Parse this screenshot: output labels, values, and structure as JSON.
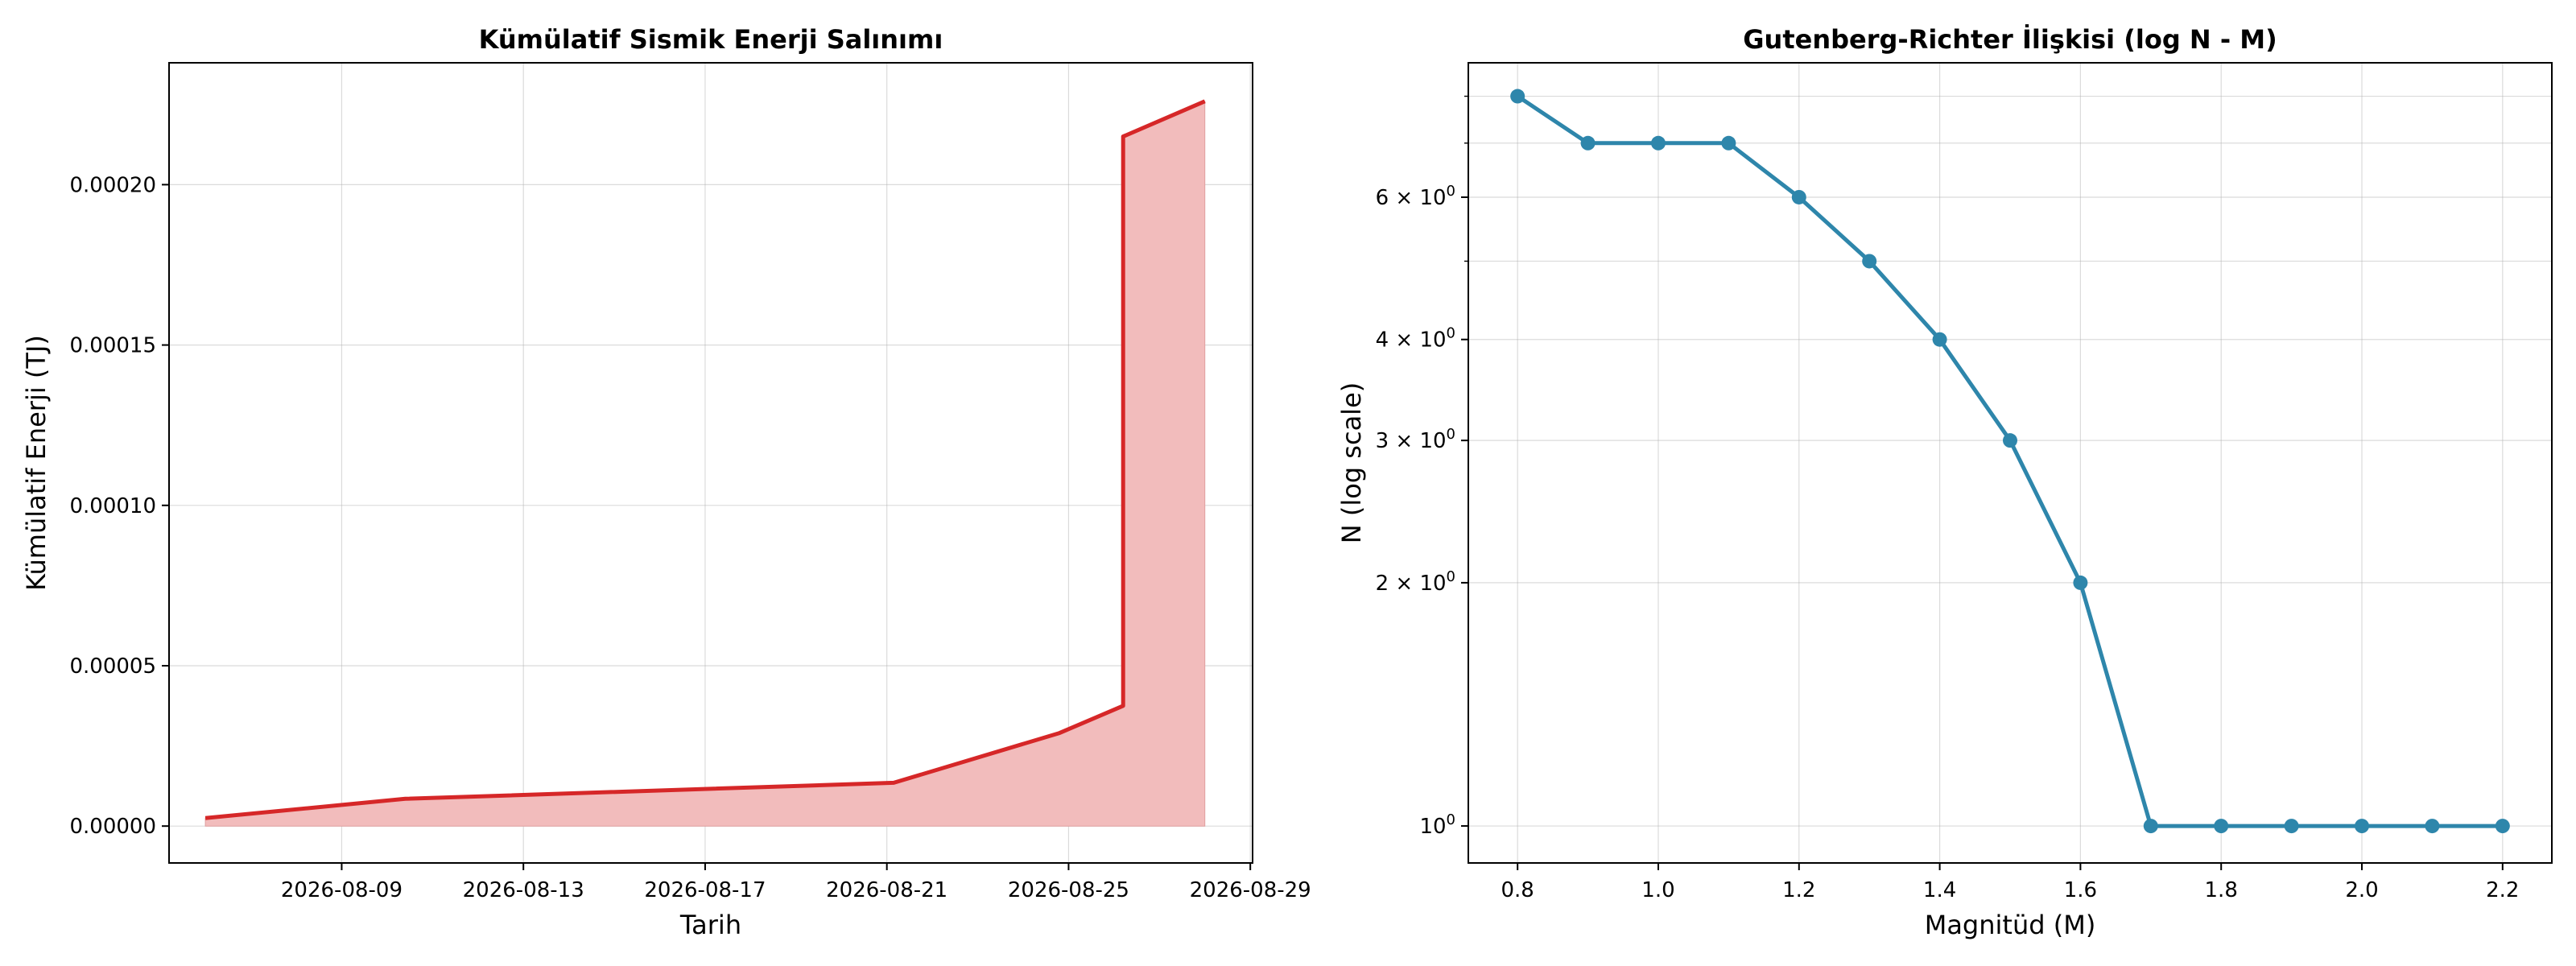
{
  "chart_data": [
    {
      "type": "area",
      "title": "Kümülatif Sismik Enerji Salınımı",
      "xlabel": "Tarih",
      "ylabel": "Kümülatif Enerji (TJ)",
      "x": [
        "2026-08-06",
        "2026-08-10",
        "2026-08-21",
        "2026-08-24",
        "2026-08-26",
        "2026-08-26",
        "2026-08-28"
      ],
      "y": [
        2.5e-06,
        8.5e-06,
        1.35e-05,
        2.9e-05,
        3.75e-05,
        0.000215,
        0.000226
      ],
      "xticks": [
        "2026-08-09",
        "2026-08-13",
        "2026-08-17",
        "2026-08-21",
        "2026-08-25",
        "2026-08-29"
      ],
      "yticks": [
        "0.00000",
        "0.00005",
        "0.00010",
        "0.00015",
        "0.00020"
      ],
      "ylim": [
        -1.15e-05,
        0.000238
      ],
      "grid": true,
      "colors": {
        "line": "#d62728",
        "fill": "#f2bcbc"
      }
    },
    {
      "type": "line",
      "title": "Gutenberg-Richter İlişkisi (log N - M)",
      "xlabel": "Magnitüd (M)",
      "ylabel": "N (log scale)",
      "x": [
        0.8,
        0.9,
        1.0,
        1.1,
        1.2,
        1.3,
        1.4,
        1.5,
        1.6,
        1.7,
        1.8,
        1.9,
        2.0,
        2.1,
        2.2
      ],
      "y": [
        8,
        7,
        7,
        7,
        6,
        5,
        4,
        3,
        2,
        1,
        1,
        1,
        1,
        1,
        1
      ],
      "xticks": [
        "0.8",
        "1.0",
        "1.2",
        "1.4",
        "1.6",
        "1.8",
        "2.0",
        "2.2"
      ],
      "ytick_labels": [
        {
          "value": 1,
          "base": "10",
          "exp": "0"
        },
        {
          "value": 2,
          "base": "2 × 10",
          "exp": "0"
        },
        {
          "value": 3,
          "base": "3 × 10",
          "exp": "0"
        },
        {
          "value": 4,
          "base": "4 × 10",
          "exp": "0"
        },
        {
          "value": 6,
          "base": "6 × 10",
          "exp": "0"
        }
      ],
      "yscale": "log",
      "xlim": [
        0.73,
        2.27
      ],
      "ylim": [
        0.9,
        8.8
      ],
      "grid": true,
      "colors": {
        "line": "#2e86ab",
        "marker": "#2e86ab"
      }
    }
  ]
}
